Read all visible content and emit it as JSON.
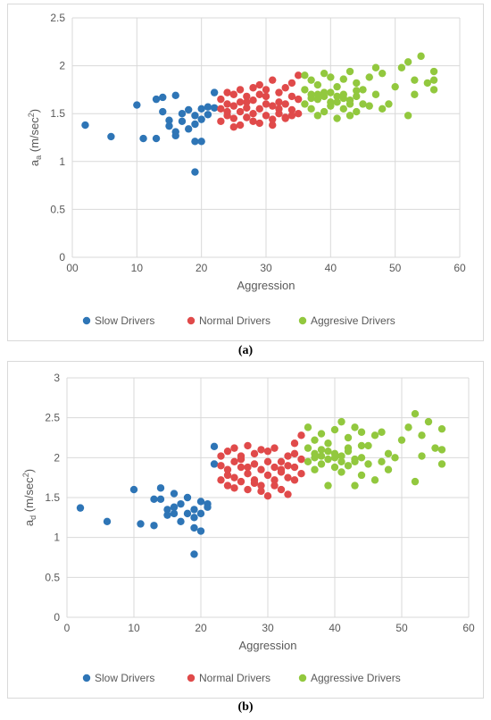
{
  "captions": {
    "a": "(a)",
    "b": "(b)"
  },
  "legend": [
    {
      "name": "Slow Drivers",
      "color": "#2e75b6"
    },
    {
      "name": "Normal Drivers",
      "color": "#e04a4a"
    }
  ],
  "legend_a_third": "Aggresive Drivers",
  "legend_b_third": "Aggressive Drivers",
  "colors": {
    "slow": "#2e75b6",
    "normal": "#e04a4a",
    "aggressive": "#92c83e"
  },
  "chart_data": [
    {
      "type": "scatter",
      "panel": "a",
      "xlabel": "Aggression",
      "ylabel": "a_a (m/sec²)",
      "ylabel_main": "a",
      "ylabel_sub": "a",
      "ylabel_unit": " (m/sec",
      "ylabel_sup": "2",
      "ylabel_close": ")",
      "xlim": [
        0,
        60
      ],
      "ylim": [
        0,
        2.5
      ],
      "xticks": [
        "00",
        "10",
        "20",
        "30",
        "40",
        "50",
        "60"
      ],
      "yticks": [
        "0",
        "0.5",
        "1",
        "1.5",
        "2",
        "2.5"
      ],
      "grid": true,
      "legend_position": "bottom",
      "series": [
        {
          "name": "Slow Drivers",
          "color_key": "slow",
          "x": [
            2,
            6,
            10,
            11,
            13,
            13,
            14,
            14,
            15,
            15,
            16,
            16,
            16,
            17,
            17,
            18,
            18,
            19,
            19,
            19,
            19,
            20,
            20,
            20,
            21,
            21,
            22,
            22
          ],
          "y": [
            1.38,
            1.26,
            1.59,
            1.24,
            1.24,
            1.65,
            1.52,
            1.67,
            1.43,
            1.37,
            1.31,
            1.27,
            1.69,
            1.42,
            1.5,
            1.34,
            1.54,
            1.48,
            1.39,
            1.21,
            0.89,
            1.44,
            1.55,
            1.21,
            1.57,
            1.49,
            1.56,
            1.72
          ]
        },
        {
          "name": "Normal Drivers",
          "color_key": "normal",
          "x": [
            23,
            23,
            23,
            24,
            24,
            24,
            25,
            25,
            25,
            26,
            26,
            26,
            27,
            27,
            27,
            28,
            28,
            28,
            29,
            29,
            29,
            30,
            30,
            30,
            31,
            31,
            31,
            32,
            32,
            32,
            33,
            33,
            33,
            34,
            34,
            34,
            35,
            35,
            35,
            25,
            28,
            31,
            33,
            26,
            30,
            24,
            29,
            32,
            34,
            27
          ],
          "y": [
            1.42,
            1.55,
            1.65,
            1.48,
            1.6,
            1.72,
            1.45,
            1.58,
            1.7,
            1.38,
            1.52,
            1.62,
            1.46,
            1.56,
            1.68,
            1.5,
            1.64,
            1.77,
            1.4,
            1.55,
            1.8,
            1.48,
            1.6,
            1.75,
            1.44,
            1.58,
            1.85,
            1.5,
            1.62,
            1.72,
            1.46,
            1.6,
            1.77,
            1.54,
            1.68,
            1.82,
            1.5,
            1.65,
            1.9,
            1.36,
            1.42,
            1.38,
            1.45,
            1.75,
            1.68,
            1.52,
            1.7,
            1.55,
            1.48,
            1.62
          ]
        },
        {
          "name": "Aggresive Drivers",
          "color_key": "aggressive",
          "x": [
            36,
            36,
            36,
            37,
            37,
            37,
            38,
            38,
            38,
            39,
            39,
            39,
            40,
            40,
            40,
            41,
            41,
            41,
            42,
            42,
            42,
            43,
            43,
            43,
            44,
            44,
            44,
            45,
            45,
            46,
            46,
            47,
            47,
            48,
            48,
            49,
            50,
            51,
            52,
            52,
            53,
            53,
            54,
            55,
            56,
            56,
            56,
            40,
            42,
            38,
            44,
            41,
            43,
            39,
            37
          ],
          "y": [
            1.6,
            1.75,
            1.9,
            1.55,
            1.7,
            1.85,
            1.48,
            1.65,
            1.8,
            1.52,
            1.68,
            1.92,
            1.58,
            1.72,
            1.88,
            1.45,
            1.62,
            1.78,
            1.55,
            1.7,
            1.86,
            1.48,
            1.64,
            1.94,
            1.52,
            1.68,
            1.82,
            1.6,
            1.75,
            1.58,
            1.88,
            1.7,
            1.98,
            1.55,
            1.92,
            1.6,
            1.78,
            1.98,
            1.48,
            2.04,
            1.7,
            1.85,
            2.1,
            1.82,
            1.75,
            1.85,
            1.94,
            1.62,
            1.66,
            1.7,
            1.74,
            1.68,
            1.6,
            1.72,
            1.66
          ]
        }
      ]
    },
    {
      "type": "scatter",
      "panel": "b",
      "xlabel": "Aggression",
      "ylabel": "a_d (m/sec²)",
      "ylabel_main": "a",
      "ylabel_sub": "d",
      "ylabel_unit": " (m/sec",
      "ylabel_sup": "2",
      "ylabel_close": ")",
      "xlim": [
        0,
        60
      ],
      "ylim": [
        0,
        3
      ],
      "xticks": [
        "0",
        "10",
        "20",
        "30",
        "40",
        "50",
        "60"
      ],
      "yticks": [
        "0",
        "0.5",
        "1",
        "1.5",
        "2",
        "2.5",
        "3"
      ],
      "grid": true,
      "legend_position": "bottom",
      "series": [
        {
          "name": "Slow Drivers",
          "color_key": "slow",
          "x": [
            2,
            6,
            10,
            11,
            13,
            13,
            14,
            14,
            15,
            15,
            16,
            16,
            16,
            17,
            17,
            18,
            18,
            19,
            19,
            19,
            19,
            20,
            20,
            20,
            21,
            21,
            22,
            22
          ],
          "y": [
            1.37,
            1.2,
            1.6,
            1.17,
            1.15,
            1.48,
            1.62,
            1.48,
            1.35,
            1.28,
            1.55,
            1.3,
            1.38,
            1.42,
            1.2,
            1.5,
            1.3,
            1.35,
            1.12,
            1.25,
            0.79,
            1.45,
            1.08,
            1.3,
            1.42,
            1.38,
            2.14,
            1.92
          ]
        },
        {
          "name": "Normal Drivers",
          "color_key": "normal",
          "x": [
            23,
            23,
            23,
            24,
            24,
            24,
            25,
            25,
            25,
            26,
            26,
            26,
            27,
            27,
            27,
            28,
            28,
            28,
            29,
            29,
            29,
            30,
            30,
            30,
            31,
            31,
            31,
            32,
            32,
            32,
            33,
            33,
            33,
            34,
            34,
            34,
            35,
            35,
            35,
            25,
            28,
            31,
            33,
            26,
            30,
            24,
            29,
            32,
            34,
            27
          ],
          "y": [
            1.72,
            1.9,
            2.02,
            1.65,
            1.85,
            2.08,
            1.75,
            1.95,
            2.12,
            1.7,
            1.88,
            2.02,
            1.6,
            1.8,
            2.15,
            1.72,
            1.92,
            2.05,
            1.58,
            1.85,
            2.1,
            1.52,
            1.78,
            2.08,
            1.65,
            1.88,
            2.12,
            1.6,
            1.82,
            1.95,
            1.54,
            1.75,
            2.02,
            1.72,
            1.88,
            2.18,
            1.8,
            1.98,
            2.28,
            1.62,
            1.68,
            1.72,
            1.9,
            1.98,
            1.95,
            1.78,
            1.65,
            1.85,
            2.05,
            1.88
          ]
        },
        {
          "name": "Aggressive Drivers",
          "color_key": "aggressive",
          "x": [
            36,
            36,
            36,
            37,
            37,
            37,
            38,
            38,
            38,
            39,
            39,
            39,
            40,
            40,
            40,
            41,
            41,
            41,
            42,
            42,
            42,
            43,
            43,
            43,
            44,
            44,
            44,
            45,
            45,
            46,
            46,
            47,
            47,
            48,
            48,
            49,
            50,
            51,
            52,
            52,
            53,
            53,
            54,
            55,
            56,
            56,
            56,
            40,
            42,
            38,
            44,
            41,
            43,
            39,
            37
          ],
          "y": [
            1.95,
            2.12,
            2.38,
            1.85,
            2.05,
            2.22,
            1.92,
            2.1,
            2.3,
            1.65,
            1.98,
            2.18,
            1.88,
            2.05,
            2.35,
            1.82,
            2.02,
            2.45,
            1.9,
            2.08,
            2.25,
            1.65,
            1.95,
            2.38,
            1.78,
            2.0,
            2.32,
            1.92,
            2.15,
            1.72,
            2.28,
            1.95,
            2.32,
            1.85,
            2.05,
            2.0,
            2.22,
            2.38,
            1.7,
            2.55,
            2.02,
            2.28,
            2.45,
            2.12,
            1.92,
            2.1,
            2.36,
            2.0,
            2.12,
            2.02,
            2.15,
            1.95,
            1.98,
            2.08,
            2.0
          ]
        }
      ]
    }
  ]
}
